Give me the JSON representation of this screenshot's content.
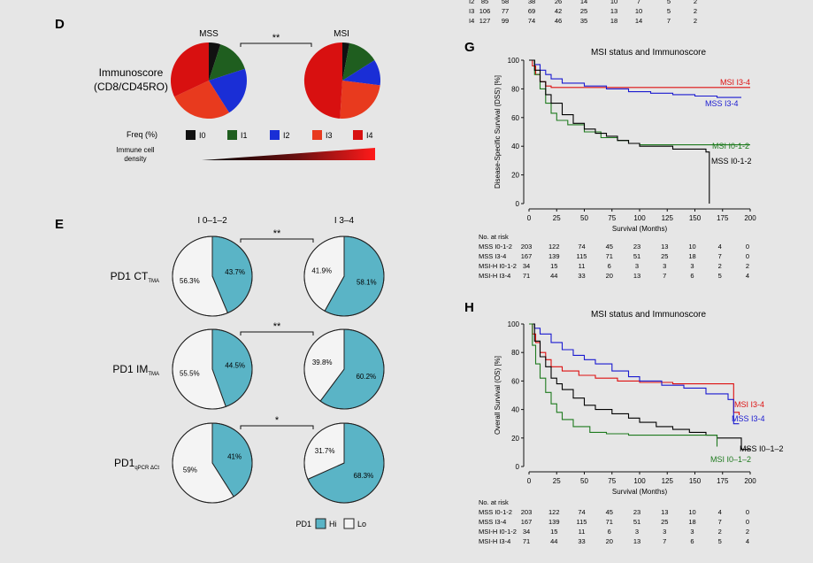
{
  "top_table": {
    "rows": [
      [
        "I2",
        "85",
        "58",
        "38",
        "26",
        "14",
        "10",
        "7",
        "5",
        "2"
      ],
      [
        "I3",
        "106",
        "77",
        "69",
        "42",
        "25",
        "13",
        "10",
        "5",
        "2"
      ],
      [
        "I4",
        "127",
        "99",
        "74",
        "46",
        "35",
        "18",
        "14",
        "7",
        "2"
      ]
    ]
  },
  "panels": {
    "D": {
      "letter": "D",
      "side_label_1": "Immunoscore",
      "side_label_2": "(CD8/CD45RO)",
      "sig": "**",
      "legend_title": "Freq (%)",
      "density_label_1": "Immune cell",
      "density_label_2": "density"
    },
    "E": {
      "letter": "E",
      "col_left": "I 0–1–2",
      "col_right": "I 3–4",
      "legend_title": "PD1",
      "legend_items": [
        "Hi",
        "Lo"
      ],
      "row_labels": [
        {
          "main": "PD1 CT",
          "sub": "TMA"
        },
        {
          "main": "PD1 IM",
          "sub": "TMA"
        },
        {
          "main": "PD1",
          "sub": "qPCR ΔCt"
        }
      ],
      "sigs": [
        "**",
        "**",
        "*"
      ]
    },
    "G": {
      "letter": "G"
    },
    "H": {
      "letter": "H"
    }
  },
  "colors": {
    "I0": "#111111",
    "I1": "#1f5e1f",
    "I2": "#1a2ed6",
    "I3": "#e83a1e",
    "I4": "#d81010",
    "pd1_hi": "#5ab4c6",
    "pd1_lo": "#f4f4f4",
    "km_mss_i012": "#000000",
    "km_mss_i34": "#1a1ad0",
    "km_msi_i012": "#1e7a1e",
    "km_msi_i34": "#dd1010"
  },
  "chart_data": [
    {
      "id": "D-MSS",
      "type": "pie",
      "title": "MSS",
      "categories": [
        "I0",
        "I1",
        "I2",
        "I3",
        "I4"
      ],
      "values": [
        5,
        15,
        21,
        27,
        32
      ]
    },
    {
      "id": "D-MSI",
      "type": "pie",
      "title": "MSI",
      "categories": [
        "I0",
        "I1",
        "I2",
        "I3",
        "I4"
      ],
      "values": [
        3,
        13,
        11,
        24,
        49
      ]
    },
    {
      "id": "E-CT-I012",
      "type": "pie",
      "categories": [
        "Hi",
        "Lo"
      ],
      "values": [
        43.7,
        56.3
      ],
      "labels": [
        "43.7%",
        "56.3%"
      ]
    },
    {
      "id": "E-CT-I34",
      "type": "pie",
      "categories": [
        "Hi",
        "Lo"
      ],
      "values": [
        58.1,
        41.9
      ],
      "labels": [
        "58.1%",
        "41.9%"
      ]
    },
    {
      "id": "E-IM-I012",
      "type": "pie",
      "categories": [
        "Hi",
        "Lo"
      ],
      "values": [
        44.5,
        55.5
      ],
      "labels": [
        "44.5%",
        "55.5%"
      ]
    },
    {
      "id": "E-IM-I34",
      "type": "pie",
      "categories": [
        "Hi",
        "Lo"
      ],
      "values": [
        60.2,
        39.8
      ],
      "labels": [
        "60.2%",
        "39.8%"
      ]
    },
    {
      "id": "E-qPCR-I012",
      "type": "pie",
      "categories": [
        "Hi",
        "Lo"
      ],
      "values": [
        41,
        59
      ],
      "labels": [
        "41%",
        "59%"
      ]
    },
    {
      "id": "E-qPCR-I34",
      "type": "pie",
      "categories": [
        "Hi",
        "Lo"
      ],
      "values": [
        68.3,
        31.7
      ],
      "labels": [
        "68.3%",
        "31.7%"
      ]
    },
    {
      "id": "G",
      "type": "line",
      "title": "MSI status and Immunoscore",
      "xlabel": "Survival (Months)",
      "ylabel": "Disease-Specific Survival (DSS) [%]",
      "xlim": [
        0,
        200
      ],
      "ylim": [
        0,
        100
      ],
      "xticks": [
        0,
        25,
        50,
        75,
        100,
        125,
        150,
        175,
        200
      ],
      "yticks": [
        0,
        20,
        40,
        60,
        80,
        100
      ],
      "series": [
        {
          "name": "MSI I3-4",
          "x": [
            0,
            3,
            6,
            10,
            15,
            20,
            200
          ],
          "y": [
            100,
            96,
            90,
            85,
            82,
            81,
            81
          ]
        },
        {
          "name": "MSS I3-4",
          "x": [
            0,
            5,
            10,
            15,
            20,
            30,
            50,
            70,
            90,
            110,
            130,
            150,
            170,
            192
          ],
          "y": [
            100,
            97,
            93,
            90,
            87,
            84,
            82,
            80,
            78,
            77,
            76,
            75,
            74,
            74
          ]
        },
        {
          "name": "MSI I0-1-2",
          "x": [
            0,
            5,
            10,
            15,
            20,
            25,
            35,
            50,
            65,
            80,
            90,
            100,
            200
          ],
          "y": [
            100,
            90,
            80,
            70,
            63,
            58,
            55,
            50,
            46,
            44,
            42,
            41,
            41
          ]
        },
        {
          "name": "MSS I0-1-2",
          "x": [
            0,
            5,
            10,
            15,
            20,
            30,
            40,
            50,
            60,
            70,
            80,
            90,
            100,
            130,
            160,
            163,
            163
          ],
          "y": [
            100,
            93,
            85,
            76,
            70,
            62,
            56,
            52,
            49,
            47,
            44,
            42,
            40,
            38,
            36,
            35,
            0
          ]
        }
      ],
      "risk_table": {
        "header": "No. at risk",
        "rows": [
          {
            "label": "MSS I0-1-2",
            "values": [
              "203",
              "122",
              "74",
              "45",
              "23",
              "13",
              "10",
              "4",
              "0"
            ]
          },
          {
            "label": "MSS I3-4",
            "values": [
              "167",
              "139",
              "115",
              "71",
              "51",
              "25",
              "18",
              "7",
              "0"
            ]
          },
          {
            "label": "MSI-H I0-1-2",
            "values": [
              "34",
              "15",
              "11",
              "6",
              "3",
              "3",
              "3",
              "2",
              "2"
            ]
          },
          {
            "label": "MSI-H I3-4",
            "values": [
              "71",
              "44",
              "33",
              "20",
              "13",
              "7",
              "6",
              "5",
              "4"
            ]
          }
        ]
      }
    },
    {
      "id": "H",
      "type": "line",
      "title": "MSI status and Immunoscore",
      "xlabel": "Survival (Months)",
      "ylabel": "Overall Survival (OS) [%]",
      "xlim": [
        0,
        200
      ],
      "ylim": [
        0,
        100
      ],
      "xticks": [
        0,
        25,
        50,
        75,
        100,
        125,
        150,
        175,
        200
      ],
      "yticks": [
        0,
        20,
        40,
        60,
        80,
        100
      ],
      "series": [
        {
          "name": "MSI I3-4",
          "x": [
            0,
            3,
            6,
            10,
            15,
            20,
            30,
            45,
            60,
            80,
            100,
            130,
            160,
            185,
            185,
            190
          ],
          "y": [
            100,
            93,
            87,
            80,
            75,
            70,
            67,
            64,
            62,
            60,
            59,
            58,
            58,
            58,
            38,
            36
          ]
        },
        {
          "name": "MSS I3-4",
          "x": [
            0,
            5,
            10,
            20,
            30,
            40,
            50,
            60,
            75,
            90,
            100,
            120,
            140,
            160,
            180,
            185,
            190
          ],
          "y": [
            100,
            97,
            93,
            87,
            82,
            78,
            75,
            72,
            67,
            63,
            60,
            57,
            55,
            51,
            47,
            30,
            30
          ]
        },
        {
          "name": "MSS I0–1–2",
          "x": [
            0,
            5,
            10,
            15,
            20,
            25,
            30,
            40,
            50,
            60,
            75,
            90,
            100,
            115,
            130,
            145,
            160,
            170,
            175,
            192,
            192,
            200
          ],
          "y": [
            100,
            88,
            77,
            70,
            62,
            58,
            54,
            48,
            43,
            40,
            37,
            34,
            31,
            28,
            26,
            24,
            22,
            20,
            20,
            20,
            12,
            12
          ]
        },
        {
          "name": "MSI I0–1–2",
          "x": [
            0,
            3,
            6,
            10,
            15,
            20,
            25,
            30,
            40,
            55,
            70,
            90,
            110,
            130,
            150,
            165,
            170
          ],
          "y": [
            100,
            85,
            72,
            62,
            52,
            44,
            38,
            33,
            28,
            24,
            23,
            22,
            22,
            22,
            22,
            22,
            14
          ]
        }
      ],
      "risk_table": {
        "header": "No. at risk",
        "rows": [
          {
            "label": "MSS I0-1-2",
            "values": [
              "203",
              "122",
              "74",
              "45",
              "23",
              "13",
              "10",
              "4",
              "0"
            ]
          },
          {
            "label": "MSS I3-4",
            "values": [
              "167",
              "139",
              "115",
              "71",
              "51",
              "25",
              "18",
              "7",
              "0"
            ]
          },
          {
            "label": "MSI-H I0-1-2",
            "values": [
              "34",
              "15",
              "11",
              "6",
              "3",
              "3",
              "3",
              "2",
              "2"
            ]
          },
          {
            "label": "MSI-H I3-4",
            "values": [
              "71",
              "44",
              "33",
              "20",
              "13",
              "7",
              "6",
              "5",
              "4"
            ]
          }
        ]
      }
    }
  ]
}
